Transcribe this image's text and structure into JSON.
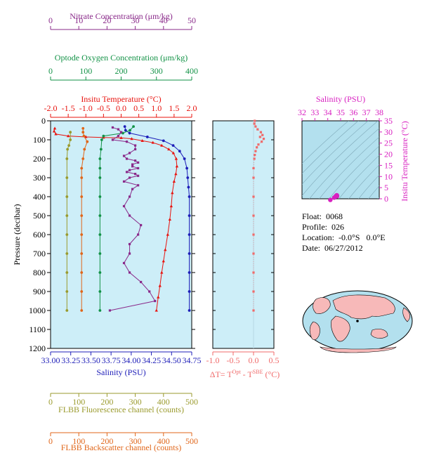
{
  "colors": {
    "nitrate": "#8a2a8a",
    "oxygen": "#129246",
    "temperature": "#e8130e",
    "salinity": "#1d1db8",
    "fluorescence": "#9a9a2c",
    "backscatter": "#e0661a",
    "delta_t": "#f06a6a",
    "ts_axis": "#d820c0",
    "plot_bg": "#cdeef8",
    "ts_bg": "#b3e0ee"
  },
  "float_info": {
    "float_label": "Float:",
    "float_value": "0068",
    "profile_label": "Profile:",
    "profile_value": "026",
    "location_label": "Location:",
    "location_value": "-0.0°S   0.0°E",
    "date_label": "Date:",
    "date_value": "06/27/2012"
  },
  "map": {
    "icon": "world-map-icon",
    "location_marker": [
      0.0,
      0.0
    ]
  },
  "chart_data": [
    {
      "id": "main_profile",
      "type": "line",
      "ylabel": "Pressure (decibar)",
      "ylim": [
        1200,
        0
      ],
      "yticks": [
        0,
        100,
        200,
        300,
        400,
        500,
        600,
        700,
        800,
        900,
        1000,
        1100,
        1200
      ],
      "grid": false,
      "axes": [
        {
          "key": "nitrate",
          "title": "Nitrate Concentration (μm/kg)",
          "ticks": [
            "0",
            "10",
            "20",
            "30",
            "40",
            "50"
          ],
          "lim": [
            0,
            50
          ]
        },
        {
          "key": "oxygen",
          "title": "Optode Oxygen Concentration (μm/kg)",
          "ticks": [
            "0",
            "100",
            "200",
            "300",
            "400"
          ],
          "lim": [
            0,
            400
          ]
        },
        {
          "key": "temperature",
          "title": "Insitu Temperature (°C)",
          "ticks": [
            "-2.0",
            "-1.5",
            "-1.0",
            "-0.5",
            "0.0",
            "0.5",
            "1.0",
            "1.5",
            "2.0"
          ],
          "lim": [
            -2,
            2
          ]
        },
        {
          "key": "salinity",
          "title": "Salinity (PSU)",
          "ticks": [
            "33.00",
            "33.25",
            "33.50",
            "33.75",
            "34.00",
            "34.25",
            "34.50",
            "34.75"
          ],
          "lim": [
            33,
            34.75
          ]
        },
        {
          "key": "fluorescence",
          "title": "FLBB Fluorescence channel (counts)",
          "ticks": [
            "0",
            "100",
            "200",
            "300",
            "400",
            "500"
          ],
          "lim": [
            0,
            500
          ]
        },
        {
          "key": "backscatter",
          "title": "FLBB Backscatter channel (counts)",
          "ticks": [
            "0",
            "100",
            "200",
            "300",
            "400",
            "500"
          ],
          "lim": [
            0,
            500
          ]
        }
      ],
      "series": [
        {
          "key": "temperature",
          "marker": "triangle",
          "points": [
            [
              -1.88,
              40
            ],
            [
              -1.9,
              55
            ],
            [
              -1.85,
              70
            ],
            [
              -1.5,
              80
            ],
            [
              -1.0,
              85
            ],
            [
              -0.5,
              88
            ],
            [
              0.0,
              90
            ],
            [
              0.3,
              95
            ],
            [
              0.6,
              105
            ],
            [
              0.9,
              115
            ],
            [
              1.15,
              130
            ],
            [
              1.35,
              150
            ],
            [
              1.48,
              170
            ],
            [
              1.56,
              200
            ],
            [
              1.58,
              240
            ],
            [
              1.55,
              280
            ],
            [
              1.5,
              320
            ],
            [
              1.45,
              380
            ],
            [
              1.42,
              450
            ],
            [
              1.38,
              520
            ],
            [
              1.32,
              600
            ],
            [
              1.25,
              680
            ],
            [
              1.2,
              740
            ],
            [
              1.15,
              800
            ],
            [
              1.1,
              870
            ],
            [
              1.05,
              930
            ],
            [
              1.0,
              1000
            ]
          ]
        },
        {
          "key": "salinity",
          "marker": "circle",
          "points": [
            [
              33.92,
              30
            ],
            [
              33.93,
              50
            ],
            [
              33.98,
              65
            ],
            [
              34.2,
              85
            ],
            [
              34.4,
              105
            ],
            [
              34.52,
              130
            ],
            [
              34.6,
              160
            ],
            [
              34.66,
              200
            ],
            [
              34.69,
              250
            ],
            [
              34.7,
              300
            ],
            [
              34.71,
              350
            ],
            [
              34.72,
              400
            ],
            [
              34.72,
              500
            ],
            [
              34.72,
              600
            ],
            [
              34.72,
              700
            ],
            [
              34.72,
              800
            ],
            [
              34.72,
              900
            ],
            [
              34.72,
              1000
            ]
          ]
        },
        {
          "key": "oxygen",
          "marker": "circle",
          "points": [
            [
              235,
              30
            ],
            [
              225,
              50
            ],
            [
              205,
              65
            ],
            [
              150,
              80
            ],
            [
              145,
              100
            ],
            [
              143,
              150
            ],
            [
              140,
              200
            ],
            [
              140,
              250
            ],
            [
              140,
              300
            ],
            [
              140,
              400
            ],
            [
              140,
              500
            ],
            [
              140,
              600
            ],
            [
              140,
              700
            ],
            [
              140,
              800
            ],
            [
              140,
              900
            ],
            [
              140,
              1000
            ]
          ]
        },
        {
          "key": "nitrate",
          "marker": "square",
          "points": [
            [
              22,
              35
            ],
            [
              24,
              45
            ],
            [
              25,
              60
            ],
            [
              24,
              80
            ],
            [
              22,
              100
            ],
            [
              27,
              110
            ],
            [
              30,
              130
            ],
            [
              30,
              150
            ],
            [
              28,
              170
            ],
            [
              26,
              185
            ],
            [
              27,
              200
            ],
            [
              30,
              210
            ],
            [
              31,
              220
            ],
            [
              29,
              230
            ],
            [
              29,
              240
            ],
            [
              31,
              250
            ],
            [
              28,
              260
            ],
            [
              27,
              270
            ],
            [
              30,
              280
            ],
            [
              31,
              290
            ],
            [
              28,
              300
            ],
            [
              26,
              320
            ],
            [
              31,
              340
            ],
            [
              29,
              360
            ],
            [
              28,
              400
            ],
            [
              26,
              450
            ],
            [
              28,
              500
            ],
            [
              32,
              550
            ],
            [
              31,
              600
            ],
            [
              28,
              650
            ],
            [
              28,
              700
            ],
            [
              26,
              750
            ],
            [
              28,
              800
            ],
            [
              32,
              850
            ],
            [
              35,
              900
            ],
            [
              37,
              950
            ],
            [
              21,
              1000
            ]
          ]
        },
        {
          "key": "fluorescence",
          "marker": "circle",
          "points": [
            [
              70,
              60
            ],
            [
              70,
              100
            ],
            [
              65,
              130
            ],
            [
              60,
              150
            ],
            [
              58,
              200
            ],
            [
              58,
              300
            ],
            [
              58,
              400
            ],
            [
              58,
              500
            ],
            [
              58,
              600
            ],
            [
              58,
              700
            ],
            [
              58,
              800
            ],
            [
              58,
              900
            ],
            [
              58,
              1000
            ]
          ]
        },
        {
          "key": "backscatter",
          "marker": "circle",
          "points": [
            [
              115,
              40
            ],
            [
              115,
              60
            ],
            [
              118,
              80
            ],
            [
              130,
              110
            ],
            [
              120,
              150
            ],
            [
              115,
              200
            ],
            [
              110,
              250
            ],
            [
              110,
              300
            ],
            [
              110,
              400
            ],
            [
              110,
              500
            ],
            [
              110,
              600
            ],
            [
              110,
              700
            ],
            [
              110,
              800
            ],
            [
              110,
              900
            ],
            [
              110,
              1000
            ]
          ]
        }
      ]
    },
    {
      "id": "delta_t",
      "type": "scatter",
      "xlabel_prefix": "ΔT= T",
      "xlabel_sup1": "Opt",
      "xlabel_mid": " - T",
      "xlabel_sup2": "SBE",
      "xlabel_suffix": " (°C)",
      "xlim": [
        -1.0,
        0.5
      ],
      "xticks": [
        "-1.0",
        "-0.5",
        "0.0",
        "0.5"
      ],
      "ylim": [
        1200,
        0
      ],
      "points": [
        [
          0.03,
          0
        ],
        [
          0.02,
          15
        ],
        [
          0.05,
          30
        ],
        [
          0.1,
          45
        ],
        [
          0.18,
          60
        ],
        [
          0.22,
          75
        ],
        [
          0.16,
          85
        ],
        [
          0.25,
          95
        ],
        [
          0.2,
          110
        ],
        [
          0.12,
          125
        ],
        [
          0.08,
          140
        ],
        [
          0.05,
          160
        ],
        [
          0.03,
          180
        ],
        [
          0.02,
          200
        ],
        [
          0.0,
          250
        ],
        [
          0.0,
          300
        ],
        [
          0.0,
          400
        ],
        [
          0.0,
          500
        ],
        [
          0.0,
          600
        ],
        [
          0.0,
          700
        ],
        [
          0.0,
          800
        ],
        [
          0.0,
          900
        ],
        [
          0.0,
          1000
        ]
      ]
    },
    {
      "id": "ts_diagram",
      "type": "scatter",
      "title": "Salinity (PSU)",
      "ylabel": "Insitu Temperature (°C)",
      "xlim": [
        32,
        38
      ],
      "xticks": [
        "32",
        "33",
        "34",
        "35",
        "36",
        "37",
        "38"
      ],
      "ylim": [
        0,
        35
      ],
      "yticks": [
        "0",
        "5",
        "10",
        "15",
        "20",
        "25",
        "30",
        "35"
      ],
      "points": [
        [
          34.6,
          1.0
        ],
        [
          34.65,
          1.3
        ],
        [
          34.7,
          1.6
        ],
        [
          34.72,
          1.4
        ],
        [
          34.72,
          1.1
        ],
        [
          34.5,
          0.5
        ],
        [
          34.2,
          -0.5
        ]
      ]
    }
  ]
}
